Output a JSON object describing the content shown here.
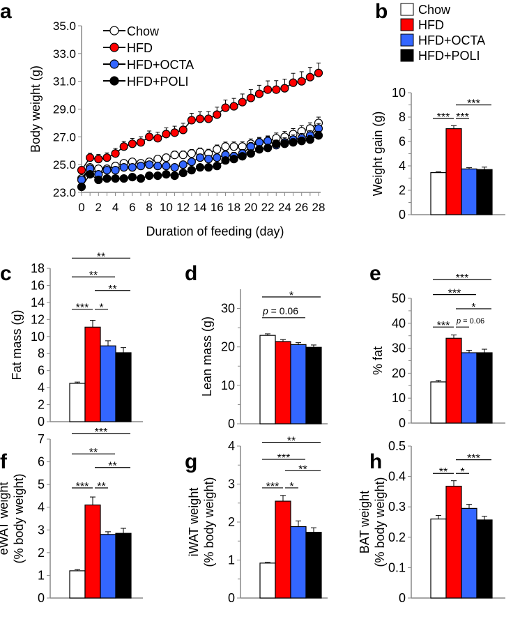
{
  "colors": {
    "Chow": "#ffffff",
    "HFD": "#ff0000",
    "HFD+OCTA": "#3366ff",
    "HFD+POLI": "#000000"
  },
  "groups": [
    "Chow",
    "HFD",
    "HFD+OCTA",
    "HFD+POLI"
  ],
  "chart_data": [
    {
      "panel": "a",
      "type": "line",
      "xlabel": "Duration of feeding (day)",
      "ylabel": "Body weight (g)",
      "ylim": [
        23,
        35
      ],
      "yticks": [
        "23.0",
        "25.0",
        "27.0",
        "29.0",
        "31.0",
        "33.0",
        "35.0"
      ],
      "xlim": [
        0,
        28
      ],
      "xticks": [
        0,
        2,
        4,
        6,
        8,
        10,
        12,
        14,
        16,
        18,
        20,
        22,
        24,
        26,
        28
      ],
      "legend": "top-left",
      "series": [
        {
          "name": "Chow",
          "err": 0.35,
          "values": [
            24.0,
            24.8,
            24.7,
            24.7,
            24.9,
            25.1,
            25.2,
            25.1,
            25.2,
            25.4,
            25.5,
            25.7,
            25.7,
            25.8,
            25.9,
            25.8,
            26.1,
            26.3,
            26.3,
            26.3,
            26.5,
            26.6,
            26.7,
            26.9,
            27.0,
            27.2,
            27.4,
            27.6,
            28.0
          ]
        },
        {
          "name": "HFD",
          "err": 0.6,
          "values": [
            24.6,
            25.5,
            25.4,
            25.5,
            25.8,
            26.3,
            26.5,
            26.6,
            27.0,
            26.9,
            27.2,
            27.3,
            27.5,
            28.2,
            28.3,
            28.3,
            28.6,
            29.1,
            29.2,
            29.5,
            29.8,
            30.1,
            30.4,
            30.4,
            30.5,
            30.9,
            31.0,
            31.3,
            31.6
          ]
        },
        {
          "name": "HFD+OCTA",
          "err": 0.3,
          "values": [
            23.9,
            24.7,
            24.3,
            24.6,
            24.6,
            24.8,
            24.8,
            24.9,
            25.0,
            24.9,
            24.9,
            24.8,
            25.0,
            25.2,
            25.5,
            25.4,
            25.5,
            25.7,
            25.6,
            25.8,
            26.3,
            26.6,
            26.7,
            26.4,
            26.6,
            26.8,
            26.9,
            27.1,
            27.6
          ]
        },
        {
          "name": "HFD+POLI",
          "err": 0.25,
          "values": [
            23.4,
            24.3,
            23.9,
            24.0,
            24.0,
            24.0,
            24.1,
            24.0,
            24.2,
            24.2,
            24.3,
            24.2,
            24.4,
            24.6,
            24.8,
            24.8,
            24.9,
            25.3,
            25.4,
            25.6,
            25.8,
            26.1,
            26.2,
            26.5,
            26.5,
            26.6,
            26.7,
            26.8,
            27.1
          ]
        }
      ]
    },
    {
      "panel": "b",
      "type": "bar",
      "ylabel": "Weight gain (g)",
      "ylim": [
        0,
        10
      ],
      "yticks": [
        "0",
        "2",
        "4",
        "6",
        "8",
        "10"
      ],
      "values": [
        3.45,
        7.05,
        3.75,
        3.7
      ],
      "errors": [
        0.06,
        0.25,
        0.1,
        0.2
      ],
      "legend": "top",
      "sig": [
        {
          "a": 0,
          "b": 1,
          "label": "***",
          "y": 7.9
        },
        {
          "a": 1,
          "b": 2,
          "label": "***",
          "y": 7.9
        },
        {
          "a": 1,
          "b": 3,
          "label": "***",
          "y": 9.0
        }
      ]
    },
    {
      "panel": "c",
      "type": "bar",
      "ylabel": "Fat mass (g)",
      "ylim": [
        0,
        18
      ],
      "yticks": [
        "0",
        "2",
        "4",
        "6",
        "8",
        "10",
        "12",
        "14",
        "16",
        "18"
      ],
      "values": [
        4.5,
        11.1,
        8.9,
        8.1
      ],
      "errors": [
        0.15,
        0.8,
        0.6,
        0.6
      ],
      "sig": [
        {
          "a": 0,
          "b": 1,
          "label": "***",
          "y": 13.2
        },
        {
          "a": 1,
          "b": 2,
          "label": "*",
          "y": 13.2
        },
        {
          "a": 1,
          "b": 3,
          "label": "**",
          "y": 15.4
        },
        {
          "a": 0,
          "b": 2,
          "label": "**",
          "y": 17.0
        },
        {
          "a": 0,
          "b": 3,
          "label": "**",
          "y": 19.2
        }
      ]
    },
    {
      "panel": "d",
      "type": "bar",
      "ylabel": "Lean mass (g)",
      "ylim": [
        0,
        35
      ],
      "yticks": [
        "0",
        "10",
        "20",
        "30"
      ],
      "values": [
        23.0,
        21.4,
        20.6,
        19.9
      ],
      "errors": [
        0.4,
        0.5,
        0.5,
        0.6
      ],
      "sig": [
        {
          "a": 0,
          "b": 2,
          "label": "p = 0.06",
          "y": 27.6
        },
        {
          "a": 0,
          "b": 3,
          "label": "*",
          "y": 33.0
        }
      ]
    },
    {
      "panel": "e",
      "type": "bar",
      "ylabel": "% fat",
      "ylim": [
        0,
        50
      ],
      "yticks": [
        "0",
        "10",
        "20",
        "30",
        "40",
        "50"
      ],
      "values": [
        16.5,
        34.0,
        28.2,
        28.2
      ],
      "errors": [
        0.6,
        1.3,
        1.0,
        1.4
      ],
      "sig": [
        {
          "a": 0,
          "b": 1,
          "label": "***",
          "y": 38.5
        },
        {
          "a": 1,
          "b": 2,
          "label": "p = 0.06",
          "y": 38.5
        },
        {
          "a": 1,
          "b": 3,
          "label": "*",
          "y": 45.8
        },
        {
          "a": 0,
          "b": 2,
          "label": "***",
          "y": 51.5
        },
        {
          "a": 0,
          "b": 3,
          "label": "***",
          "y": 57.5
        }
      ]
    },
    {
      "panel": "f",
      "type": "bar",
      "ylabel": "eWAT weight\n(% body weight)",
      "ylim": [
        0,
        7
      ],
      "yticks": [
        "0",
        "1",
        "2",
        "3",
        "4",
        "5",
        "6",
        "7"
      ],
      "values": [
        1.2,
        4.1,
        2.8,
        2.85
      ],
      "errors": [
        0.05,
        0.35,
        0.12,
        0.22
      ],
      "sig": [
        {
          "a": 0,
          "b": 1,
          "label": "***",
          "y": 4.85
        },
        {
          "a": 1,
          "b": 2,
          "label": "**",
          "y": 4.85
        },
        {
          "a": 1,
          "b": 3,
          "label": "**",
          "y": 5.75
        },
        {
          "a": 0,
          "b": 2,
          "label": "**",
          "y": 6.35
        },
        {
          "a": 0,
          "b": 3,
          "label": "***",
          "y": 7.25
        }
      ]
    },
    {
      "panel": "g",
      "type": "bar",
      "ylabel": "iWAT weight\n(% body weight)",
      "ylim": [
        0,
        4
      ],
      "yticks": [
        "0",
        "1",
        "2",
        "3",
        "4"
      ],
      "values": [
        0.92,
        2.55,
        1.88,
        1.73
      ],
      "errors": [
        0.02,
        0.15,
        0.15,
        0.12
      ],
      "sig": [
        {
          "a": 0,
          "b": 1,
          "label": "***",
          "y": 2.9
        },
        {
          "a": 1,
          "b": 2,
          "label": "*",
          "y": 2.9
        },
        {
          "a": 1,
          "b": 3,
          "label": "**",
          "y": 3.35
        },
        {
          "a": 0,
          "b": 2,
          "label": "***",
          "y": 3.65
        },
        {
          "a": 0,
          "b": 3,
          "label": "**",
          "y": 4.1
        }
      ]
    },
    {
      "panel": "h",
      "type": "bar",
      "ylabel": "BAT weight\n(% body weight)",
      "ylim": [
        0,
        0.5
      ],
      "yticks": [
        "0",
        "0.1",
        "0.2",
        "0.3",
        "0.4",
        "0.5"
      ],
      "values": [
        0.26,
        0.368,
        0.295,
        0.257
      ],
      "errors": [
        0.012,
        0.018,
        0.013,
        0.012
      ],
      "sig": [
        {
          "a": 0,
          "b": 1,
          "label": "**",
          "y": 0.41
        },
        {
          "a": 1,
          "b": 2,
          "label": "*",
          "y": 0.41
        },
        {
          "a": 1,
          "b": 3,
          "label": "***",
          "y": 0.455
        }
      ]
    }
  ]
}
